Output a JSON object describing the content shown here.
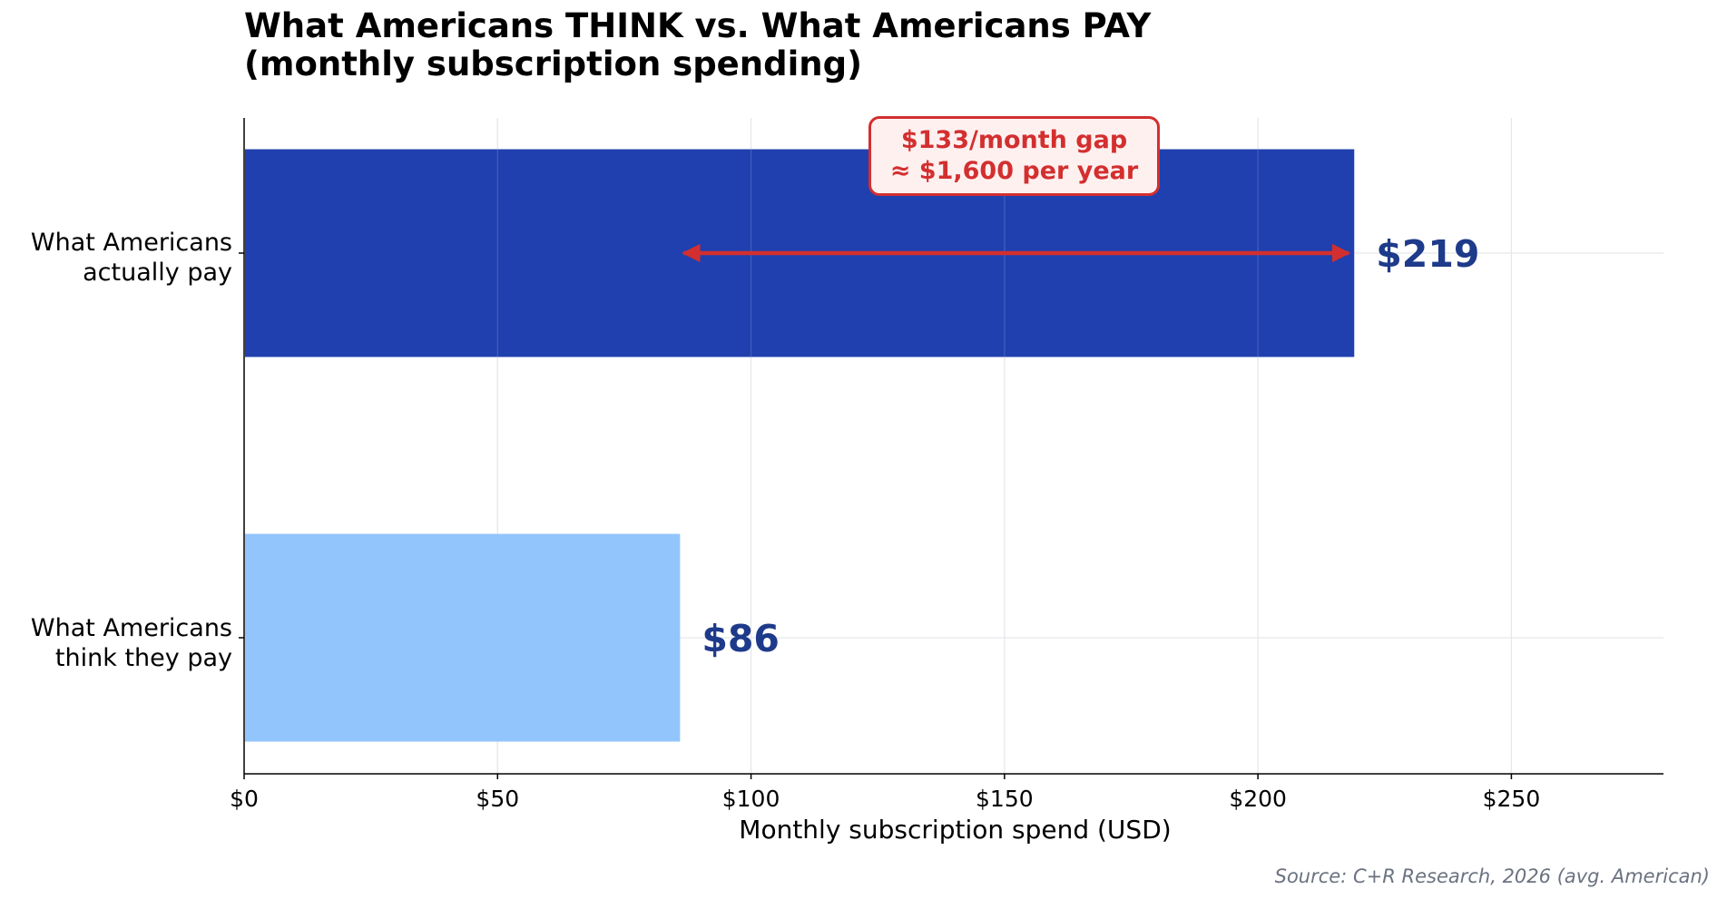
{
  "chart_data": {
    "type": "bar",
    "orientation": "horizontal",
    "title_lines": [
      "What Americans THINK vs. What Americans PAY",
      "(monthly subscription spending)"
    ],
    "categories": [
      {
        "label_lines": [
          "What Americans",
          "actually pay"
        ],
        "value": 219,
        "value_label": "$219",
        "color": "#1f40ae"
      },
      {
        "label_lines": [
          "What Americans",
          "think they pay"
        ],
        "value": 86,
        "value_label": "$86",
        "color": "#93c5fd"
      }
    ],
    "xlabel": "Monthly subscription spend (USD)",
    "xlim": [
      0,
      280
    ],
    "xticks": [
      0,
      50,
      100,
      150,
      200,
      250
    ],
    "xtick_labels": [
      "$0",
      "$50",
      "$100",
      "$150",
      "$200",
      "$250"
    ],
    "grid": true,
    "value_label_color": "#1e3a8a",
    "annotation": {
      "lines": [
        "$133/month gap",
        "≈ $1,600 per year"
      ],
      "arrow_from": 86,
      "arrow_to": 219,
      "color": "#d32f2f"
    },
    "source": "Source: C+R Research, 2026 (avg. American)"
  }
}
